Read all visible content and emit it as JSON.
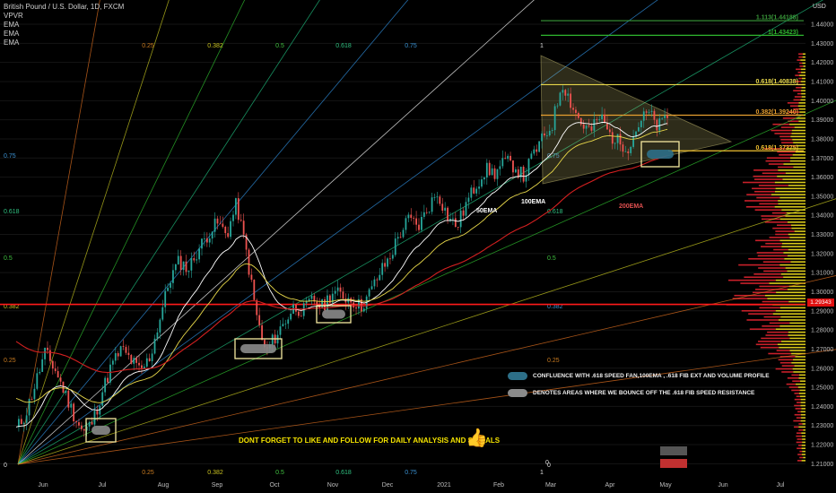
{
  "header": {
    "symbol": "British Pound / U.S. Dollar, 1D, FXCM",
    "indicators": [
      "VPVR",
      "EMA",
      "EMA",
      "EMA"
    ]
  },
  "axis": {
    "currency": "USD",
    "y_ticks": [
      1.44,
      1.43,
      1.42,
      1.41,
      1.4,
      1.39,
      1.38,
      1.37,
      1.36,
      1.35,
      1.34,
      1.33,
      1.32,
      1.31,
      1.3,
      1.29,
      1.28,
      1.27,
      1.26,
      1.25,
      1.24,
      1.23,
      1.22,
      1.21
    ],
    "y_tick_labels": [
      "1.44000",
      "1.43000",
      "1.42000",
      "1.41000",
      "1.40000",
      "1.39000",
      "1.38000",
      "1.37000",
      "1.36000",
      "1.35000",
      "1.34000",
      "1.33000",
      "1.32000",
      "1.31000",
      "1.30000",
      "1.29000",
      "1.28000",
      "1.27000",
      "1.26000",
      "1.25000",
      "1.24000",
      "1.23000",
      "1.22000",
      "1.21000"
    ],
    "x_ticks": [
      "Jun",
      "Jul",
      "Aug",
      "Sep",
      "Oct",
      "Nov",
      "Dec",
      "2021",
      "Feb",
      "Mar",
      "Apr",
      "May",
      "Jun",
      "Jul"
    ],
    "last_price": "1.29343"
  },
  "chart_data": {
    "type": "candlestick",
    "ylim": [
      1.205,
      1.448
    ],
    "resistance_price": 1.2934,
    "fib_extension_levels": [
      {
        "label": "1.113(1.44188)",
        "price": 1.44188,
        "color": "#3a9a3a"
      },
      {
        "label": "1(1.43423)",
        "price": 1.43423,
        "color": "#2fb52f"
      },
      {
        "label": "0.618(1.40838)",
        "price": 1.40838,
        "color": "#e8d84a"
      },
      {
        "label": "0.382(1.39240)",
        "price": 1.3924,
        "color": "#e8a030"
      },
      {
        "label": "0.618(1.37375)",
        "price": 1.37375,
        "color": "#f0c030"
      }
    ],
    "fan_top_labels": [
      "0.25",
      "0.382",
      "0.5",
      "0.618",
      "0.75",
      "1"
    ],
    "fan_bottom_labels": [
      "0",
      "0.25",
      "0.382",
      "0.5",
      "0.618",
      "0.75",
      "1"
    ],
    "fan_left_labels": [
      "0.75",
      "0.618",
      "0.5",
      "0.382",
      "0.25",
      "0"
    ],
    "fan_mid_labels": [
      "0.75",
      "0.618",
      "0.5",
      "0.382",
      "0.25",
      "0"
    ],
    "close_path": [
      1.228,
      1.236,
      1.252,
      1.268,
      1.26,
      1.248,
      1.236,
      1.226,
      1.232,
      1.248,
      1.262,
      1.27,
      1.264,
      1.258,
      1.266,
      1.286,
      1.306,
      1.316,
      1.312,
      1.322,
      1.33,
      1.336,
      1.33,
      1.346,
      1.322,
      1.29,
      1.268,
      1.276,
      1.284,
      1.292,
      1.29,
      1.296,
      1.292,
      1.3,
      1.298,
      1.296,
      1.292,
      1.3,
      1.31,
      1.318,
      1.33,
      1.338,
      1.334,
      1.344,
      1.352,
      1.34,
      1.334,
      1.346,
      1.356,
      1.364,
      1.362,
      1.368,
      1.366,
      1.36,
      1.372,
      1.38,
      1.388,
      1.41,
      1.398,
      1.388,
      1.384,
      1.392,
      1.382,
      1.378,
      1.376,
      1.388,
      1.394,
      1.386,
      1.392
    ],
    "ema_labels": [
      "50EMA",
      "100EMA",
      "200EMA"
    ]
  },
  "annotations": {
    "legend_confluence": "CONFLUENCE WITH .618 SPEED FAN,100EMA , .618 FIB EXT  AND VOLUME PROFILE",
    "legend_bounce": "DENOTES AREAS WHERE WE BOUNCE OFF THE .618 FIB SPEED  RESISTANCE",
    "footer_message": "DONT FORGET TO LIKE AND FOLLOW FOR DAILY ANALYSIS AND SIGNALS",
    "thumb_icon": "thumbs-up-icon"
  },
  "colors": {
    "up": "#26a69a",
    "down": "#ef5350",
    "resistance": "#ff1a1a",
    "ema50": "#ffffff",
    "ema100": "#e8d84a",
    "ema200": "#d42020",
    "box": "#f5e9a0"
  }
}
